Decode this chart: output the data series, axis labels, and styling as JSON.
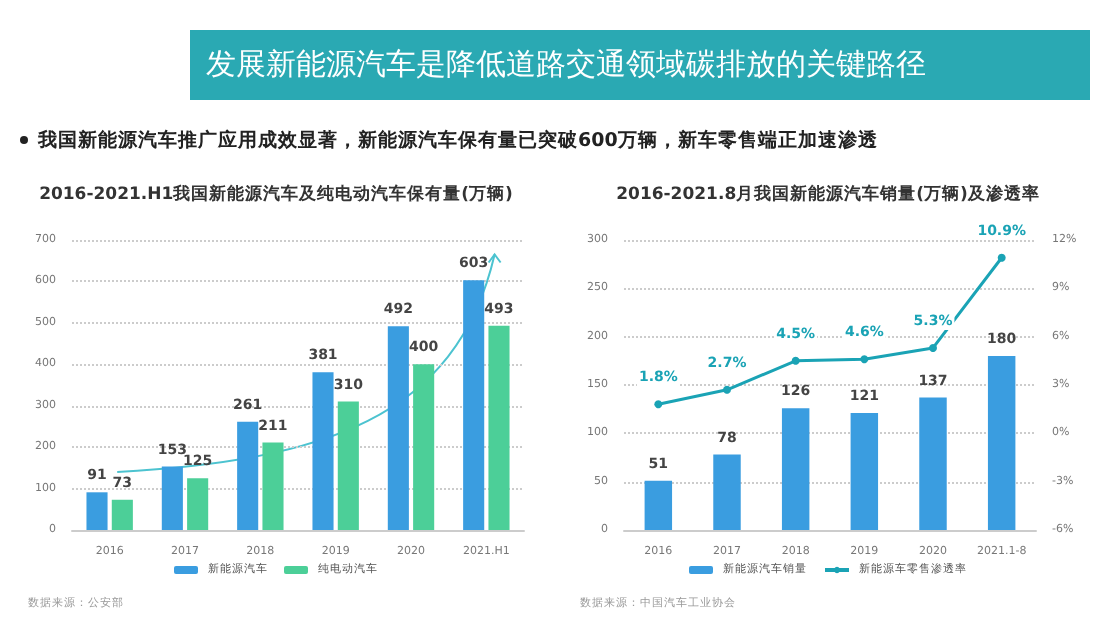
{
  "chart_data": [
    {
      "type": "bar",
      "title": "2016-2021.H1我国新能源汽车及纯电动汽车保有量(万辆)",
      "annotations": [
        "发展新能源汽车是降低道路交通领域碳排放的关键路径",
        "我国新能源汽车推广应用成效显著，新能源汽车保有量已突破600万辆，新车零售端正加速渗透",
        "数据来源：公安部"
      ],
      "categories": [
        "2016",
        "2017",
        "2018",
        "2019",
        "2020",
        "2021.H1"
      ],
      "series": [
        {
          "name": "新能源汽车",
          "color": "#3a9de0",
          "values": [
            91,
            153,
            261,
            381,
            492,
            603
          ]
        },
        {
          "name": "纯电动汽车",
          "color": "#4ccf98",
          "values": [
            73,
            125,
            211,
            310,
            400,
            493
          ]
        }
      ],
      "ylim": [
        0,
        700
      ],
      "yticks": [
        0,
        100,
        200,
        300,
        400,
        500,
        600,
        700
      ],
      "grid": "y",
      "legend": "bottom",
      "data_labels": true
    },
    {
      "type": "bar",
      "title": "2016-2021.8月我国新能源汽车销量(万辆)及渗透率",
      "annotations": [
        "数据来源：中国汽车工业协会"
      ],
      "categories": [
        "2016",
        "2017",
        "2018",
        "2019",
        "2020",
        "2021.1-8"
      ],
      "series": [
        {
          "name": "新能源汽车销量",
          "color": "#3a9de0",
          "values": [
            51,
            78,
            126,
            121,
            137,
            180
          ]
        },
        {
          "name": "新能源车零售渗透率",
          "type": "line",
          "axis": "y2",
          "color": "#1aa3b5",
          "values": [
            1.8,
            2.7,
            4.5,
            4.6,
            5.3,
            10.9
          ],
          "value_labels": [
            "1.8%",
            "2.7%",
            "4.5%",
            "4.6%",
            "5.3%",
            "10.9%"
          ]
        }
      ],
      "ylim": [
        0,
        300
      ],
      "yticks": [
        0,
        50,
        100,
        150,
        200,
        250,
        300
      ],
      "y2lim": [
        -6,
        12
      ],
      "y2ticks": [
        {
          "value": -6,
          "label": "-6%"
        },
        {
          "value": -3,
          "label": "-3%"
        },
        {
          "value": 0,
          "label": "0%"
        },
        {
          "value": 3,
          "label": "3%"
        },
        {
          "value": 6,
          "label": "6%"
        },
        {
          "value": 9,
          "label": "9%"
        },
        {
          "value": 12,
          "label": "12%"
        }
      ],
      "grid": "y",
      "legend": "bottom",
      "data_labels": true,
      "marker": "circle"
    }
  ]
}
